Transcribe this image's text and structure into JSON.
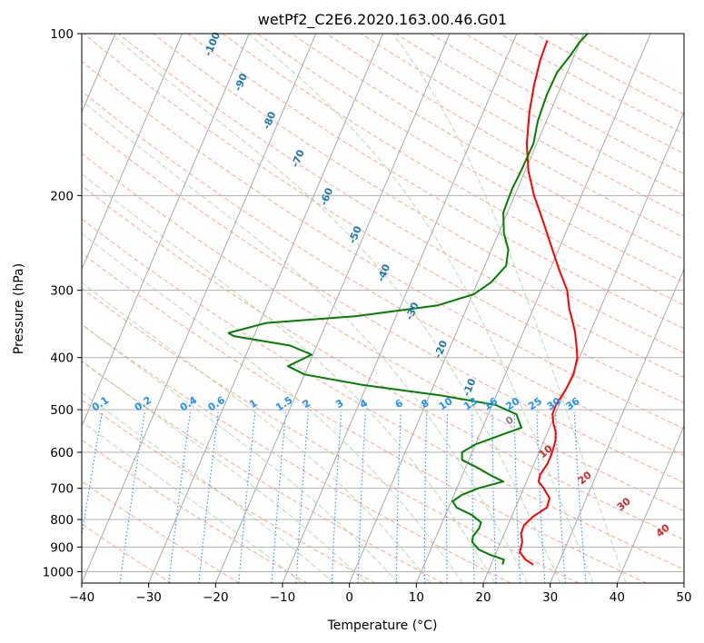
{
  "chart_data": {
    "type": "line",
    "title": "wetPf2_C2E6.2020.163.00.46.G01",
    "xlabel": "Temperature (°C)",
    "ylabel": "Pressure (hPa)",
    "xlim": [
      -40,
      50
    ],
    "ylim": [
      1050,
      100
    ],
    "y_scale": "log",
    "x_ticks": [
      "−40",
      "−30",
      "−20",
      "−10",
      "0",
      "10",
      "20",
      "30",
      "40",
      "50"
    ],
    "y_ticks": [
      "100",
      "200",
      "300",
      "400",
      "500",
      "600",
      "700",
      "800",
      "900",
      "1000"
    ],
    "grid": true,
    "series": [
      {
        "color": "#ff0000",
        "points": [
          [
            26.3,
            970
          ],
          [
            24.8,
            950
          ],
          [
            23.5,
            920
          ],
          [
            23.2,
            880
          ],
          [
            22.5,
            850
          ],
          [
            22.4,
            820
          ],
          [
            23.2,
            790
          ],
          [
            24.7,
            760
          ],
          [
            24.5,
            730
          ],
          [
            23.0,
            700
          ],
          [
            21.8,
            680
          ],
          [
            21.6,
            660
          ],
          [
            22.0,
            630
          ],
          [
            22.0,
            610
          ],
          [
            21.9,
            590
          ],
          [
            21.7,
            570
          ],
          [
            21.2,
            550
          ],
          [
            20.3,
            530
          ],
          [
            19.6,
            510
          ],
          [
            19.5,
            490
          ],
          [
            20.0,
            460
          ],
          [
            20.2,
            430
          ],
          [
            19.7,
            400
          ],
          [
            18.8,
            380
          ],
          [
            17.8,
            360
          ],
          [
            16.5,
            340
          ],
          [
            15.4,
            325
          ],
          [
            13.9,
            300
          ],
          [
            11.4,
            275
          ],
          [
            7.8,
            240
          ],
          [
            5.5,
            220
          ],
          [
            2.9,
            200
          ],
          [
            0.5,
            180
          ],
          [
            -1.5,
            160
          ],
          [
            -3.1,
            140
          ],
          [
            -4.1,
            125
          ],
          [
            -4.8,
            112
          ],
          [
            -5.0,
            103
          ]
        ]
      },
      {
        "color": "#008000",
        "points": [
          [
            21.7,
            970
          ],
          [
            21.6,
            950
          ],
          [
            19.2,
            930
          ],
          [
            17.2,
            910
          ],
          [
            15.7,
            880
          ],
          [
            15.5,
            860
          ],
          [
            15.9,
            830
          ],
          [
            15.8,
            810
          ],
          [
            14.0,
            785
          ],
          [
            11.2,
            760
          ],
          [
            10.2,
            740
          ],
          [
            11.2,
            720
          ],
          [
            13.2,
            700
          ],
          [
            16.5,
            680
          ],
          [
            14.0,
            660
          ],
          [
            11.7,
            640
          ],
          [
            9.0,
            620
          ],
          [
            8.5,
            600
          ],
          [
            10.0,
            580
          ],
          [
            12.8,
            560
          ],
          [
            15.8,
            540
          ],
          [
            14.2,
            510
          ],
          [
            10.5,
            490
          ],
          [
            1.5,
            470
          ],
          [
            -10.5,
            450
          ],
          [
            -20.0,
            430
          ],
          [
            -23.0,
            415
          ],
          [
            -20.2,
            395
          ],
          [
            -24.0,
            380
          ],
          [
            -33.0,
            365
          ],
          [
            -34.0,
            360
          ],
          [
            -29.0,
            345
          ],
          [
            -16.0,
            335
          ],
          [
            -4.5,
            320
          ],
          [
            0.2,
            305
          ],
          [
            2.0,
            290
          ],
          [
            3.2,
            270
          ],
          [
            2.5,
            252
          ],
          [
            0.8,
            235
          ],
          [
            -0.6,
            215
          ],
          [
            -0.8,
            195
          ],
          [
            -0.6,
            178
          ],
          [
            -0.5,
            160
          ],
          [
            -1.3,
            145
          ],
          [
            -1.6,
            130
          ],
          [
            -1.5,
            118
          ],
          [
            -0.6,
            110
          ],
          [
            -0.1,
            104
          ],
          [
            0.6,
            100
          ]
        ]
      }
    ],
    "isotherm_label_color": "#1f77b4",
    "isotherm_labels": [
      "-100",
      "-90",
      "-80",
      "-70",
      "-60",
      "-50",
      "-40",
      "-30",
      "-20",
      "-10"
    ],
    "mixing_ratio_label_color": "#1e90ff",
    "mixing_ratio_labels": [
      "0.1",
      "0.2",
      "0.4",
      "0.6",
      "1",
      "1.5",
      "2",
      "3",
      "4",
      "6",
      "8",
      "10",
      "13",
      "16",
      "20",
      "25",
      "30",
      "36"
    ],
    "lcl_label": "0",
    "lcl_label_color": "#808080",
    "red_labels_color": "#d62728",
    "red_labels": [
      "10",
      "20",
      "30",
      "40"
    ]
  }
}
